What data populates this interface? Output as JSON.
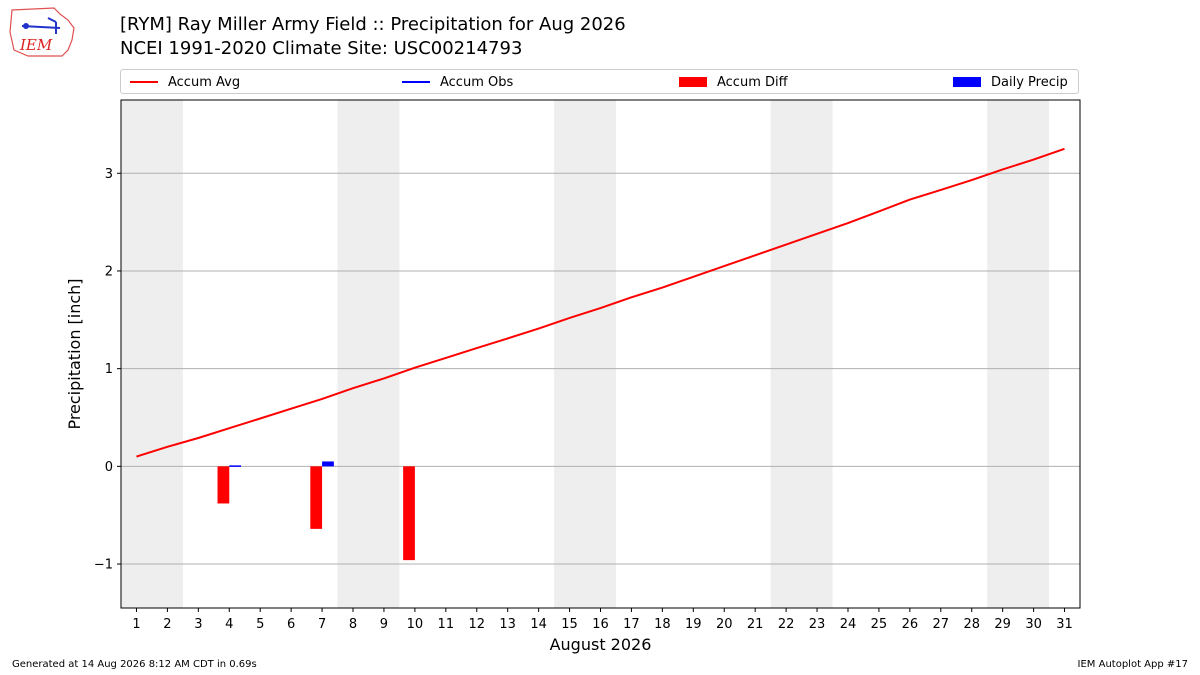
{
  "header": {
    "title_line1": "[RYM] Ray Miller Army Field :: Precipitation for Aug 2026",
    "title_line2": "NCEI 1991-2020 Climate Site: USC00214793",
    "logo_text": "IEM"
  },
  "footer": {
    "generated": "Generated at 14 Aug 2026 8:12 AM CDT in 0.69s",
    "app": "IEM Autoplot App #17"
  },
  "colors": {
    "accum_avg": "#ff0000",
    "accum_obs": "#0000ff",
    "accum_diff": "#ff0000",
    "daily_precip": "#0000ff",
    "weekend_shade": "#eeeeee",
    "grid": "#b0b0b0"
  },
  "chart_data": {
    "type": "line",
    "title": "[RYM] Ray Miller Army Field :: Precipitation for Aug 2026",
    "subtitle": "NCEI 1991-2020 Climate Site: USC00214793",
    "xlabel": "August 2026",
    "ylabel": "Precipitation [inch]",
    "x": [
      1,
      2,
      3,
      4,
      5,
      6,
      7,
      8,
      9,
      10,
      11,
      12,
      13,
      14,
      15,
      16,
      17,
      18,
      19,
      20,
      21,
      22,
      23,
      24,
      25,
      26,
      27,
      28,
      29,
      30,
      31
    ],
    "xlim": [
      0.5,
      31.5
    ],
    "ylim": [
      -1.45,
      3.75
    ],
    "yticks": [
      -1,
      0,
      1,
      2,
      3
    ],
    "ytick_labels": [
      "−1",
      "0",
      "1",
      "2",
      "3"
    ],
    "grid": "horizontal",
    "legend_placement": "top",
    "shaded_weekends": [
      [
        1,
        2
      ],
      [
        8,
        9
      ],
      [
        15,
        16
      ],
      [
        22,
        23
      ],
      [
        29,
        30
      ]
    ],
    "series": [
      {
        "name": "Accum Avg",
        "kind": "line",
        "x": [
          1,
          2,
          3,
          4,
          5,
          6,
          7,
          8,
          9,
          10,
          11,
          12,
          13,
          14,
          15,
          16,
          17,
          18,
          19,
          20,
          21,
          22,
          23,
          24,
          25,
          26,
          27,
          28,
          29,
          30,
          31
        ],
        "values": [
          0.1,
          0.2,
          0.29,
          0.39,
          0.49,
          0.59,
          0.69,
          0.8,
          0.9,
          1.01,
          1.11,
          1.21,
          1.31,
          1.41,
          1.52,
          1.62,
          1.73,
          1.83,
          1.94,
          2.05,
          2.16,
          2.27,
          2.38,
          2.49,
          2.61,
          2.73,
          2.83,
          2.93,
          3.04,
          3.14,
          3.25
        ]
      },
      {
        "name": "Accum Obs",
        "kind": "line",
        "x": [],
        "values": []
      },
      {
        "name": "Accum Diff",
        "kind": "bar",
        "x": [
          4,
          7,
          10
        ],
        "values": [
          -0.38,
          -0.64,
          -0.96
        ]
      },
      {
        "name": "Daily Precip",
        "kind": "bar",
        "x": [
          4,
          7
        ],
        "values": [
          0.01,
          0.05
        ]
      }
    ]
  }
}
